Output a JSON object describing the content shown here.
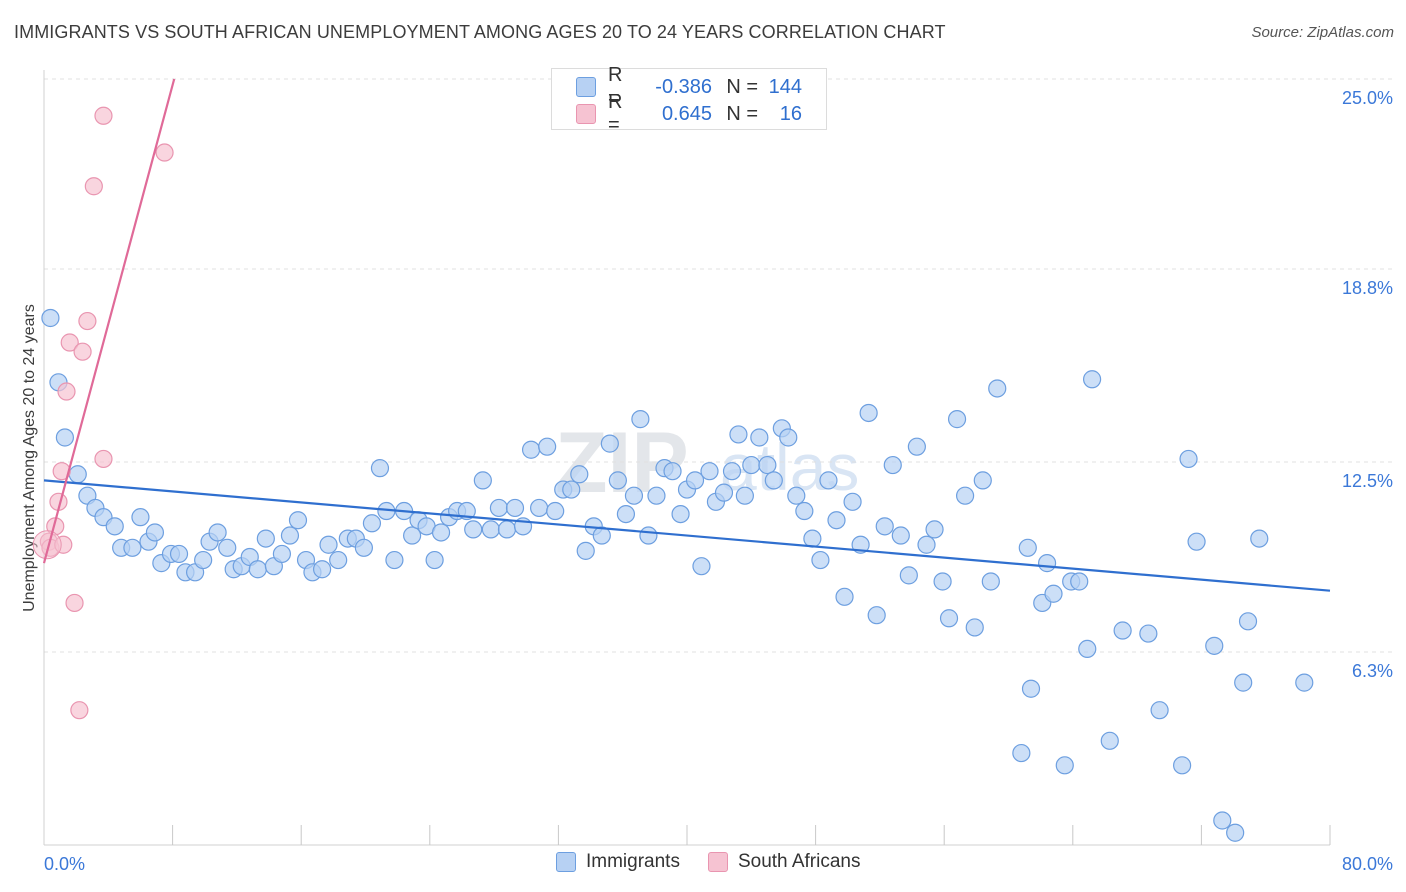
{
  "title": "IMMIGRANTS VS SOUTH AFRICAN UNEMPLOYMENT AMONG AGES 20 TO 24 YEARS CORRELATION CHART",
  "source": "Source: ZipAtlas.com",
  "watermark": {
    "zip": "ZIP",
    "atlas": "atlas"
  },
  "colors": {
    "blue_fill": "#b7d1f3",
    "blue_stroke": "#6d9fe0",
    "blue_line": "#2f6fcf",
    "pink_fill": "#f6c3d2",
    "pink_stroke": "#e995b0",
    "pink_line": "#e06a98",
    "grid": "#e0e0e0",
    "tick_text": "#3b78d8"
  },
  "legend": {
    "rows": [
      {
        "r_label": "R =",
        "r_value": "-0.386",
        "n_label": "N =",
        "n_value": "144"
      },
      {
        "r_label": "R =",
        "r_value": "0.645",
        "n_label": "N =",
        "n_value": "16"
      }
    ]
  },
  "bottom_legend": {
    "immigrants": "Immigrants",
    "south_africans": "South Africans"
  },
  "chart_data": {
    "type": "scatter",
    "title": "IMMIGRANTS VS SOUTH AFRICAN UNEMPLOYMENT AMONG AGES 20 TO 24 YEARS CORRELATION CHART",
    "xlabel": "",
    "ylabel": "Unemployment Among Ages 20 to 24 years",
    "xlim": [
      0,
      80
    ],
    "ylim": [
      0,
      25
    ],
    "x_tick_labels": [
      "0.0%",
      "80.0%"
    ],
    "y_ticks": [
      6.3,
      12.5,
      18.8,
      25.0
    ],
    "y_tick_labels": [
      "6.3%",
      "12.5%",
      "18.8%",
      "25.0%"
    ],
    "grid": true,
    "legend_position": "top-center",
    "series": [
      {
        "name": "Immigrants",
        "trend": {
          "x": [
            0,
            80
          ],
          "y": [
            11.9,
            8.3
          ]
        },
        "points": [
          [
            0.4,
            17.2
          ],
          [
            0.9,
            15.1
          ],
          [
            1.3,
            13.3
          ],
          [
            2.1,
            12.1
          ],
          [
            2.7,
            11.4
          ],
          [
            3.2,
            11.0
          ],
          [
            3.7,
            10.7
          ],
          [
            4.4,
            10.4
          ],
          [
            4.8,
            9.7
          ],
          [
            5.5,
            9.7
          ],
          [
            6.0,
            10.7
          ],
          [
            6.5,
            9.9
          ],
          [
            6.9,
            10.2
          ],
          [
            7.3,
            9.2
          ],
          [
            7.9,
            9.5
          ],
          [
            8.4,
            9.5
          ],
          [
            8.8,
            8.9
          ],
          [
            9.4,
            8.9
          ],
          [
            9.9,
            9.3
          ],
          [
            10.3,
            9.9
          ],
          [
            10.8,
            10.2
          ],
          [
            11.4,
            9.7
          ],
          [
            11.8,
            9.0
          ],
          [
            12.3,
            9.1
          ],
          [
            12.8,
            9.4
          ],
          [
            13.3,
            9.0
          ],
          [
            13.8,
            10.0
          ],
          [
            14.3,
            9.1
          ],
          [
            14.8,
            9.5
          ],
          [
            15.3,
            10.1
          ],
          [
            15.8,
            10.6
          ],
          [
            16.3,
            9.3
          ],
          [
            16.7,
            8.9
          ],
          [
            17.3,
            9.0
          ],
          [
            17.7,
            9.8
          ],
          [
            18.3,
            9.3
          ],
          [
            18.9,
            10.0
          ],
          [
            19.4,
            10.0
          ],
          [
            19.9,
            9.7
          ],
          [
            20.4,
            10.5
          ],
          [
            20.9,
            12.3
          ],
          [
            21.3,
            10.9
          ],
          [
            21.8,
            9.3
          ],
          [
            22.4,
            10.9
          ],
          [
            22.9,
            10.1
          ],
          [
            23.3,
            10.6
          ],
          [
            23.8,
            10.4
          ],
          [
            24.3,
            9.3
          ],
          [
            24.7,
            10.2
          ],
          [
            25.2,
            10.7
          ],
          [
            25.7,
            10.9
          ],
          [
            26.3,
            10.9
          ],
          [
            26.7,
            10.3
          ],
          [
            27.3,
            11.9
          ],
          [
            27.8,
            10.3
          ],
          [
            28.3,
            11.0
          ],
          [
            28.8,
            10.3
          ],
          [
            29.3,
            11.0
          ],
          [
            29.8,
            10.4
          ],
          [
            30.3,
            12.9
          ],
          [
            30.8,
            11.0
          ],
          [
            31.3,
            13.0
          ],
          [
            31.8,
            10.9
          ],
          [
            32.3,
            11.6
          ],
          [
            32.8,
            11.6
          ],
          [
            33.3,
            12.1
          ],
          [
            33.7,
            9.6
          ],
          [
            34.2,
            10.4
          ],
          [
            34.7,
            10.1
          ],
          [
            35.2,
            13.1
          ],
          [
            35.7,
            11.9
          ],
          [
            36.2,
            10.8
          ],
          [
            36.7,
            11.4
          ],
          [
            37.1,
            13.9
          ],
          [
            37.6,
            10.1
          ],
          [
            38.1,
            11.4
          ],
          [
            38.6,
            12.3
          ],
          [
            39.1,
            12.2
          ],
          [
            39.6,
            10.8
          ],
          [
            40.0,
            11.6
          ],
          [
            40.5,
            11.9
          ],
          [
            40.9,
            9.1
          ],
          [
            41.4,
            12.2
          ],
          [
            41.8,
            11.2
          ],
          [
            42.3,
            11.5
          ],
          [
            42.8,
            12.2
          ],
          [
            43.2,
            13.4
          ],
          [
            43.6,
            11.4
          ],
          [
            44.0,
            12.4
          ],
          [
            44.5,
            13.3
          ],
          [
            45.0,
            12.4
          ],
          [
            45.4,
            11.9
          ],
          [
            45.9,
            13.6
          ],
          [
            46.3,
            13.3
          ],
          [
            46.8,
            11.4
          ],
          [
            47.3,
            10.9
          ],
          [
            47.8,
            10.0
          ],
          [
            48.3,
            9.3
          ],
          [
            48.8,
            11.9
          ],
          [
            49.3,
            10.6
          ],
          [
            49.8,
            8.1
          ],
          [
            50.3,
            11.2
          ],
          [
            50.8,
            9.8
          ],
          [
            51.3,
            14.1
          ],
          [
            51.8,
            7.5
          ],
          [
            52.3,
            10.4
          ],
          [
            52.8,
            12.4
          ],
          [
            53.3,
            10.1
          ],
          [
            53.8,
            8.8
          ],
          [
            54.3,
            13.0
          ],
          [
            54.9,
            9.8
          ],
          [
            55.4,
            10.3
          ],
          [
            55.9,
            8.6
          ],
          [
            56.3,
            7.4
          ],
          [
            56.8,
            13.9
          ],
          [
            57.3,
            11.4
          ],
          [
            57.9,
            7.1
          ],
          [
            58.4,
            11.9
          ],
          [
            58.9,
            8.6
          ],
          [
            59.3,
            14.9
          ],
          [
            60.8,
            3.0
          ],
          [
            61.2,
            9.7
          ],
          [
            61.4,
            5.1
          ],
          [
            62.1,
            7.9
          ],
          [
            62.4,
            9.2
          ],
          [
            62.8,
            8.2
          ],
          [
            63.5,
            2.6
          ],
          [
            63.9,
            8.6
          ],
          [
            64.4,
            8.6
          ],
          [
            64.9,
            6.4
          ],
          [
            65.2,
            15.2
          ],
          [
            66.3,
            3.4
          ],
          [
            67.1,
            7.0
          ],
          [
            68.7,
            6.9
          ],
          [
            69.4,
            4.4
          ],
          [
            70.8,
            2.6
          ],
          [
            71.2,
            12.6
          ],
          [
            71.7,
            9.9
          ],
          [
            72.8,
            6.5
          ],
          [
            73.3,
            0.8
          ],
          [
            74.1,
            0.4
          ],
          [
            74.6,
            5.3
          ],
          [
            74.9,
            7.3
          ],
          [
            75.6,
            10.0
          ],
          [
            78.4,
            5.3
          ]
        ]
      },
      {
        "name": "South Africans",
        "trend": {
          "x": [
            0,
            8.1
          ],
          "y": [
            9.2,
            25.0
          ]
        },
        "points": [
          [
            0.3,
            9.9
          ],
          [
            0.4,
            9.7
          ],
          [
            0.7,
            10.4
          ],
          [
            0.9,
            11.2
          ],
          [
            1.1,
            12.2
          ],
          [
            1.2,
            9.8
          ],
          [
            1.4,
            14.8
          ],
          [
            1.6,
            16.4
          ],
          [
            1.9,
            7.9
          ],
          [
            2.2,
            4.4
          ],
          [
            2.4,
            16.1
          ],
          [
            2.7,
            17.1
          ],
          [
            3.1,
            21.5
          ],
          [
            3.7,
            12.6
          ],
          [
            3.7,
            23.8
          ],
          [
            7.5,
            22.6
          ]
        ]
      }
    ]
  }
}
